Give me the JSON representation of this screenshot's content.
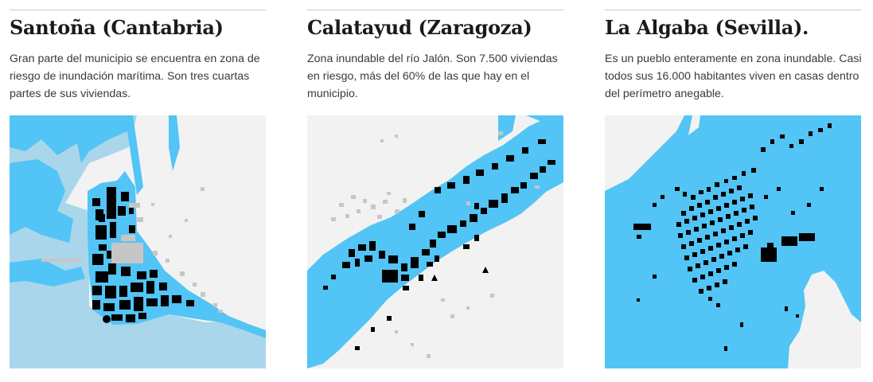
{
  "maps": [
    {
      "title": "Santoña (Cantabria)",
      "description": "Gran parte del municipio se encuentra en zona de riesgo de inundación marítima. Son tres cuartas partes de sus viviendas."
    },
    {
      "title": "Calatayud (Zaragoza)",
      "description": "Zona inundable del río Jalón. Son 7.500 viviendas en riesgo, más del 60% de las que hay en el municipio."
    },
    {
      "title": "La Algaba (Sevilla).",
      "description": "Es un pueblo enteramente en zona inundable. Casi todos sus 16.000 habitantes viven en casas dentro del perímetro anegable."
    }
  ],
  "colors": {
    "flood_zone": "#52c4f5",
    "sea": "#a9d6ea",
    "land": "#f2f2f2",
    "buildings_at_risk": "#000000",
    "buildings_other": "#c6c6c6"
  }
}
